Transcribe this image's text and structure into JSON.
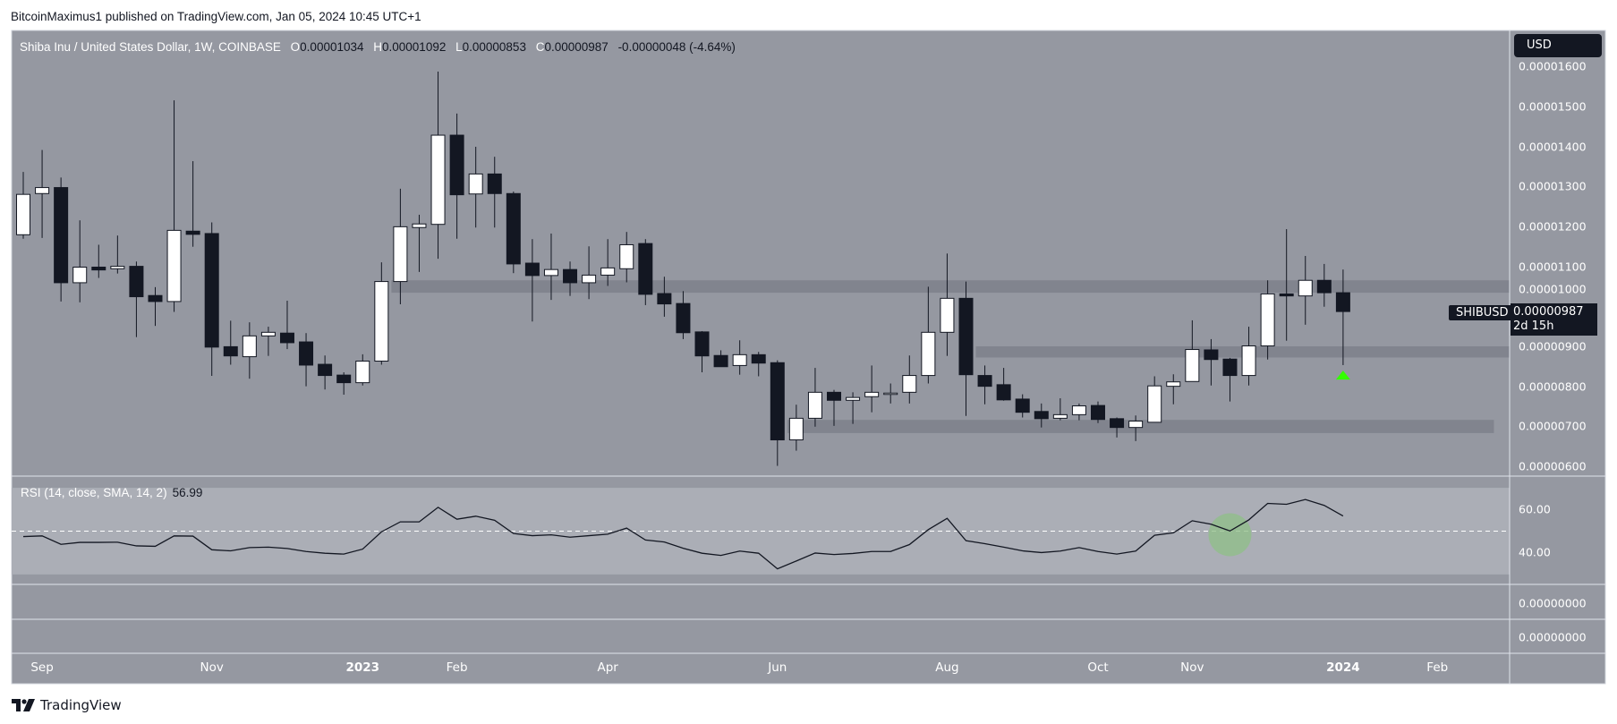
{
  "attribution": "BitcoinMaximus1 published on TradingView.com, Jan 05, 2024 10:45 UTC+1",
  "legend": {
    "title": "Shiba Inu / United States Dollar, 1W, COINBASE",
    "open_key": "O",
    "open": "0.00001034",
    "high_key": "H",
    "high": "0.00001092",
    "low_key": "L",
    "low": "0.00000853",
    "close_key": "C",
    "close": "0.00000987",
    "change": "-0.00000048 (-4.64%)"
  },
  "currency_button": "USD",
  "symbol_tag": "SHIBUSD",
  "last_price": "0.00000987",
  "countdown": "2d 15h",
  "price_axis_labels": [
    "0.00001600",
    "0.00001500",
    "0.00001400",
    "0.00001300",
    "0.00001200",
    "0.00001100",
    "0.00001000",
    "0.00000900",
    "0.00000800",
    "0.00000700",
    "0.00000600"
  ],
  "rsi": {
    "legend": "RSI (14, close, SMA, 14, 2)",
    "value": "56.99",
    "axis_labels": [
      "60.00",
      "40.00"
    ]
  },
  "extra_panes": [
    {
      "label": "0.00000000"
    },
    {
      "label": "0.00000000"
    }
  ],
  "time_axis": [
    {
      "label": "Sep",
      "date": "2022-09-05",
      "year": false
    },
    {
      "label": "Nov",
      "date": "2022-11-07",
      "year": false
    },
    {
      "label": "2023",
      "date": "2023-01-02",
      "year": true
    },
    {
      "label": "Feb",
      "date": "2023-02-06",
      "year": false
    },
    {
      "label": "Apr",
      "date": "2023-04-03",
      "year": false
    },
    {
      "label": "Jun",
      "date": "2023-06-05",
      "year": false
    },
    {
      "label": "Aug",
      "date": "2023-08-07",
      "year": false
    },
    {
      "label": "Oct",
      "date": "2023-10-02",
      "year": false
    },
    {
      "label": "Nov",
      "date": "2023-11-06",
      "year": false
    },
    {
      "label": "2024",
      "date": "2024-01-01",
      "year": true
    },
    {
      "label": "Feb",
      "date": "2024-02-05",
      "year": false
    }
  ],
  "footer": {
    "logo_text": "TradingView"
  },
  "colors": {
    "pane_bg": "#9598a1",
    "rsi_band": "#abaeb6",
    "zone": "#81848e",
    "up_body": "#ffffff",
    "down_body": "#131722",
    "marker": "#33ff00",
    "highlight": "#8fbf87"
  },
  "chart_data": {
    "type": "candlestick",
    "interval": "1W",
    "ylim": [
      5.5e-06,
      1.65e-05
    ],
    "candles": [
      {
        "date": "2022-08-29",
        "o": 1.179e-05,
        "h": 1.336e-05,
        "l": 1.169e-05,
        "c": 1.28e-05
      },
      {
        "date": "2022-09-05",
        "o": 1.282e-05,
        "h": 1.391e-05,
        "l": 1.171e-05,
        "c": 1.297e-05
      },
      {
        "date": "2022-09-12",
        "o": 1.297e-05,
        "h": 1.322e-05,
        "l": 1.012e-05,
        "c": 1.059e-05
      },
      {
        "date": "2022-09-19",
        "o": 1.059e-05,
        "h": 1.215e-05,
        "l": 1.01e-05,
        "c": 1.098e-05
      },
      {
        "date": "2022-09-26",
        "o": 1.098e-05,
        "h": 1.154e-05,
        "l": 1.071e-05,
        "c": 1.091e-05
      },
      {
        "date": "2022-10-03",
        "o": 1.094e-05,
        "h": 1.177e-05,
        "l": 1.082e-05,
        "c": 1.1e-05
      },
      {
        "date": "2022-10-10",
        "o": 1.1e-05,
        "h": 1.112e-05,
        "l": 9.23e-06,
        "c": 1.024e-05
      },
      {
        "date": "2022-10-17",
        "o": 1.027e-05,
        "h": 1.048e-05,
        "l": 9.51e-06,
        "c": 1.012e-05
      },
      {
        "date": "2022-10-24",
        "o": 1.012e-05,
        "h": 1.515e-05,
        "l": 9.86e-06,
        "c": 1.19e-05
      },
      {
        "date": "2022-10-31",
        "o": 1.188e-05,
        "h": 1.363e-05,
        "l": 1.149e-05,
        "c": 1.18e-05
      },
      {
        "date": "2022-11-07",
        "o": 1.182e-05,
        "h": 1.21e-05,
        "l": 8.26e-06,
        "c": 8.98e-06
      },
      {
        "date": "2022-11-14",
        "o": 8.99e-06,
        "h": 9.64e-06,
        "l": 8.54e-06,
        "c": 8.76e-06
      },
      {
        "date": "2022-11-21",
        "o": 8.74e-06,
        "h": 9.6e-06,
        "l": 8.19e-06,
        "c": 9.26e-06
      },
      {
        "date": "2022-11-28",
        "o": 9.26e-06,
        "h": 9.49e-06,
        "l": 8.76e-06,
        "c": 9.35e-06
      },
      {
        "date": "2022-12-05",
        "o": 9.33e-06,
        "h": 1.014e-05,
        "l": 8.93e-06,
        "c": 9.09e-06
      },
      {
        "date": "2022-12-12",
        "o": 9.11e-06,
        "h": 9.33e-06,
        "l": 8e-06,
        "c": 8.53e-06
      },
      {
        "date": "2022-12-19",
        "o": 8.55e-06,
        "h": 8.77e-06,
        "l": 7.92e-06,
        "c": 8.27e-06
      },
      {
        "date": "2022-12-26",
        "o": 8.28e-06,
        "h": 8.35e-06,
        "l": 7.79e-06,
        "c": 8.09e-06
      },
      {
        "date": "2023-01-02",
        "o": 8.09e-06,
        "h": 8.8e-06,
        "l": 8.02e-06,
        "c": 8.63e-06
      },
      {
        "date": "2023-01-09",
        "o": 8.63e-06,
        "h": 1.11e-05,
        "l": 8.54e-06,
        "c": 1.062e-05
      },
      {
        "date": "2023-01-16",
        "o": 1.062e-05,
        "h": 1.294e-05,
        "l": 1.005e-05,
        "c": 1.199e-05
      },
      {
        "date": "2023-01-23",
        "o": 1.197e-05,
        "h": 1.229e-05,
        "l": 1.086e-05,
        "c": 1.206e-05
      },
      {
        "date": "2023-01-30",
        "o": 1.205e-05,
        "h": 1.587e-05,
        "l": 1.119e-05,
        "c": 1.428e-05
      },
      {
        "date": "2023-02-06",
        "o": 1.428e-05,
        "h": 1.482e-05,
        "l": 1.169e-05,
        "c": 1.279e-05
      },
      {
        "date": "2023-02-13",
        "o": 1.281e-05,
        "h": 1.399e-05,
        "l": 1.197e-05,
        "c": 1.331e-05
      },
      {
        "date": "2023-02-20",
        "o": 1.331e-05,
        "h": 1.374e-05,
        "l": 1.197e-05,
        "c": 1.282e-05
      },
      {
        "date": "2023-02-27",
        "o": 1.282e-05,
        "h": 1.287e-05,
        "l": 1.083e-05,
        "c": 1.106e-05
      },
      {
        "date": "2023-03-06",
        "o": 1.108e-05,
        "h": 1.168e-05,
        "l": 9.62e-06,
        "c": 1.077e-05
      },
      {
        "date": "2023-03-13",
        "o": 1.077e-05,
        "h": 1.182e-05,
        "l": 1.016e-05,
        "c": 1.092e-05
      },
      {
        "date": "2023-03-20",
        "o": 1.092e-05,
        "h": 1.112e-05,
        "l": 1.026e-05,
        "c": 1.059e-05
      },
      {
        "date": "2023-03-27",
        "o": 1.059e-05,
        "h": 1.15e-05,
        "l": 1.018e-05,
        "c": 1.078e-05
      },
      {
        "date": "2023-04-03",
        "o": 1.078e-05,
        "h": 1.168e-05,
        "l": 1.051e-05,
        "c": 1.096e-05
      },
      {
        "date": "2023-04-10",
        "o": 1.094e-05,
        "h": 1.186e-05,
        "l": 1.06e-05,
        "c": 1.154e-05
      },
      {
        "date": "2023-04-17",
        "o": 1.157e-05,
        "h": 1.168e-05,
        "l": 1.003e-05,
        "c": 1.03e-05
      },
      {
        "date": "2023-04-24",
        "o": 1.032e-05,
        "h": 1.074e-05,
        "l": 9.74e-06,
        "c": 1.006e-05
      },
      {
        "date": "2023-05-01",
        "o": 1.007e-05,
        "h": 1.038e-05,
        "l": 9.18e-06,
        "c": 9.34e-06
      },
      {
        "date": "2023-05-08",
        "o": 9.36e-06,
        "h": 9.38e-06,
        "l": 8.35e-06,
        "c": 8.76e-06
      },
      {
        "date": "2023-05-15",
        "o": 8.77e-06,
        "h": 8.9e-06,
        "l": 8.49e-06,
        "c": 8.49e-06
      },
      {
        "date": "2023-05-22",
        "o": 8.52e-06,
        "h": 9.15e-06,
        "l": 8.29e-06,
        "c": 8.79e-06
      },
      {
        "date": "2023-05-29",
        "o": 8.79e-06,
        "h": 8.86e-06,
        "l": 8.25e-06,
        "c": 8.58e-06
      },
      {
        "date": "2023-06-05",
        "o": 8.59e-06,
        "h": 8.65e-06,
        "l": 6.01e-06,
        "c": 6.66e-06
      },
      {
        "date": "2023-06-12",
        "o": 6.66e-06,
        "h": 7.54e-06,
        "l": 6.39e-06,
        "c": 7.2e-06
      },
      {
        "date": "2023-06-19",
        "o": 7.2e-06,
        "h": 8.46e-06,
        "l": 6.99e-06,
        "c": 7.85e-06
      },
      {
        "date": "2023-06-26",
        "o": 7.85e-06,
        "h": 7.91e-06,
        "l": 7.01e-06,
        "c": 7.65e-06
      },
      {
        "date": "2023-07-03",
        "o": 7.65e-06,
        "h": 7.85e-06,
        "l": 7.06e-06,
        "c": 7.72e-06
      },
      {
        "date": "2023-07-10",
        "o": 7.74e-06,
        "h": 8.52e-06,
        "l": 7.35e-06,
        "c": 7.85e-06
      },
      {
        "date": "2023-07-17",
        "o": 7.83e-06,
        "h": 8.07e-06,
        "l": 7.57e-06,
        "c": 7.83e-06
      },
      {
        "date": "2023-07-24",
        "o": 7.85e-06,
        "h": 8.77e-06,
        "l": 7.57e-06,
        "c": 8.27e-06
      },
      {
        "date": "2023-07-31",
        "o": 8.27e-06,
        "h": 1.049e-05,
        "l": 8.07e-06,
        "c": 9.35e-06
      },
      {
        "date": "2023-08-07",
        "o": 9.35e-06,
        "h": 1.132e-05,
        "l": 8.76e-06,
        "c": 1.02e-05
      },
      {
        "date": "2023-08-14",
        "o": 1.02e-05,
        "h": 1.062e-05,
        "l": 7.26e-06,
        "c": 8.29e-06
      },
      {
        "date": "2023-08-21",
        "o": 8.27e-06,
        "h": 8.52e-06,
        "l": 7.55e-06,
        "c": 8e-06
      },
      {
        "date": "2023-08-28",
        "o": 8.04e-06,
        "h": 8.46e-06,
        "l": 7.64e-06,
        "c": 7.66e-06
      },
      {
        "date": "2023-09-04",
        "o": 7.68e-06,
        "h": 7.8e-06,
        "l": 7.22e-06,
        "c": 7.35e-06
      },
      {
        "date": "2023-09-11",
        "o": 7.37e-06,
        "h": 7.57e-06,
        "l": 6.97e-06,
        "c": 7.19e-06
      },
      {
        "date": "2023-09-18",
        "o": 7.2e-06,
        "h": 7.7e-06,
        "l": 7.15e-06,
        "c": 7.29e-06
      },
      {
        "date": "2023-09-25",
        "o": 7.29e-06,
        "h": 7.57e-06,
        "l": 7.15e-06,
        "c": 7.51e-06
      },
      {
        "date": "2023-10-02",
        "o": 7.52e-06,
        "h": 7.62e-06,
        "l": 7.08e-06,
        "c": 7.17e-06
      },
      {
        "date": "2023-10-09",
        "o": 7.19e-06,
        "h": 7.22e-06,
        "l": 6.72e-06,
        "c": 6.97e-06
      },
      {
        "date": "2023-10-16",
        "o": 6.97e-06,
        "h": 7.27e-06,
        "l": 6.63e-06,
        "c": 7.13e-06
      },
      {
        "date": "2023-10-23",
        "o": 7.1e-06,
        "h": 8.25e-06,
        "l": 7.1e-06,
        "c": 8.01e-06
      },
      {
        "date": "2023-10-30",
        "o": 8e-06,
        "h": 8.3e-06,
        "l": 7.55e-06,
        "c": 8.11e-06
      },
      {
        "date": "2023-11-06",
        "o": 8.12e-06,
        "h": 9.65e-06,
        "l": 8.12e-06,
        "c": 8.92e-06
      },
      {
        "date": "2023-11-13",
        "o": 8.91e-06,
        "h": 9.18e-06,
        "l": 8.02e-06,
        "c": 8.67e-06
      },
      {
        "date": "2023-11-20",
        "o": 8.68e-06,
        "h": 8.71e-06,
        "l": 7.62e-06,
        "c": 8.27e-06
      },
      {
        "date": "2023-11-27",
        "o": 8.27e-06,
        "h": 9.49e-06,
        "l": 8.02e-06,
        "c": 9.01e-06
      },
      {
        "date": "2023-12-04",
        "o": 9.01e-06,
        "h": 1.065e-05,
        "l": 8.67e-06,
        "c": 1.031e-05
      },
      {
        "date": "2023-12-11",
        "o": 1.031e-05,
        "h": 1.193e-05,
        "l": 9.14e-06,
        "c": 1.026e-05
      },
      {
        "date": "2023-12-18",
        "o": 1.026e-05,
        "h": 1.126e-05,
        "l": 9.54e-06,
        "c": 1.065e-05
      },
      {
        "date": "2023-12-25",
        "o": 1.065e-05,
        "h": 1.106e-05,
        "l": 9.99e-06,
        "c": 1.034e-05
      },
      {
        "date": "2024-01-01",
        "o": 1.034e-05,
        "h": 1.092e-05,
        "l": 8.53e-06,
        "c": 9.87e-06
      }
    ],
    "zones": [
      {
        "low": 1.034e-05,
        "high": 1.065e-05,
        "start": "2023-01-16"
      },
      {
        "low": 8.72e-06,
        "high": 9e-06,
        "start": "2023-08-21"
      },
      {
        "low": 6.83e-06,
        "high": 7.16e-06,
        "start": "2023-06-12",
        "end": "2024-02-26"
      }
    ],
    "marker": {
      "shape": "triangle-up",
      "date": "2024-01-01",
      "price": 8.28e-06
    },
    "rsi_series": [
      47.5,
      47.8,
      43.9,
      44.8,
      44.8,
      44.9,
      43.2,
      43.0,
      47.8,
      47.7,
      41.4,
      40.9,
      42.4,
      42.6,
      42.0,
      40.6,
      39.8,
      39.4,
      41.7,
      49.7,
      54.3,
      54.3,
      61.0,
      55.5,
      56.9,
      55.0,
      48.9,
      47.9,
      48.3,
      47.2,
      47.9,
      48.6,
      51.4,
      45.9,
      45.0,
      42.1,
      39.8,
      38.8,
      40.8,
      39.8,
      32.6,
      36.2,
      39.9,
      39.2,
      39.7,
      40.6,
      40.6,
      43.8,
      50.7,
      55.9,
      45.6,
      44.2,
      42.6,
      40.9,
      40.1,
      40.8,
      42.4,
      40.6,
      39.4,
      40.8,
      48.1,
      49.2,
      54.8,
      53.2,
      50.1,
      55.2,
      62.8,
      62.4,
      64.6,
      61.9,
      56.99
    ],
    "rsi_band": [
      30,
      70
    ],
    "rsi_midline": 50,
    "rsi_highlight": {
      "date": "2023-11-20",
      "value": 50
    }
  }
}
